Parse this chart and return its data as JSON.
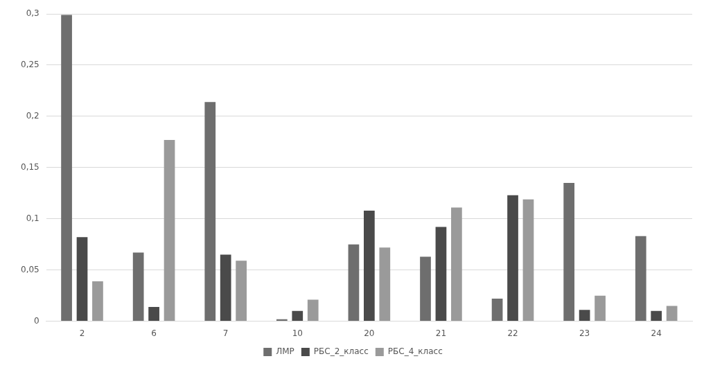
{
  "chart_data": {
    "type": "bar",
    "categories": [
      "2",
      "6",
      "7",
      "10",
      "20",
      "21",
      "22",
      "23",
      "24"
    ],
    "series": [
      {
        "name": "ЛМР",
        "color": "#6e6e6e",
        "values": [
          0.299,
          0.067,
          0.214,
          0.002,
          0.075,
          0.063,
          0.022,
          0.135,
          0.083
        ]
      },
      {
        "name": "РБС_2_класс",
        "color": "#4a4a4a",
        "values": [
          0.082,
          0.014,
          0.065,
          0.01,
          0.108,
          0.092,
          0.123,
          0.011,
          0.01
        ]
      },
      {
        "name": "РБС_4_класс",
        "color": "#9a9a9a",
        "values": [
          0.039,
          0.177,
          0.059,
          0.021,
          0.072,
          0.111,
          0.119,
          0.025,
          0.015
        ]
      }
    ],
    "ylim": [
      0,
      0.3
    ],
    "yticks": [
      {
        "value": 0,
        "label": "0"
      },
      {
        "value": 0.05,
        "label": "0,05"
      },
      {
        "value": 0.1,
        "label": "0,1"
      },
      {
        "value": 0.15,
        "label": "0,15"
      },
      {
        "value": 0.2,
        "label": "0,2"
      },
      {
        "value": 0.25,
        "label": "0,25"
      },
      {
        "value": 0.3,
        "label": "0,3"
      }
    ],
    "grid": "y",
    "legend": "bottom"
  }
}
